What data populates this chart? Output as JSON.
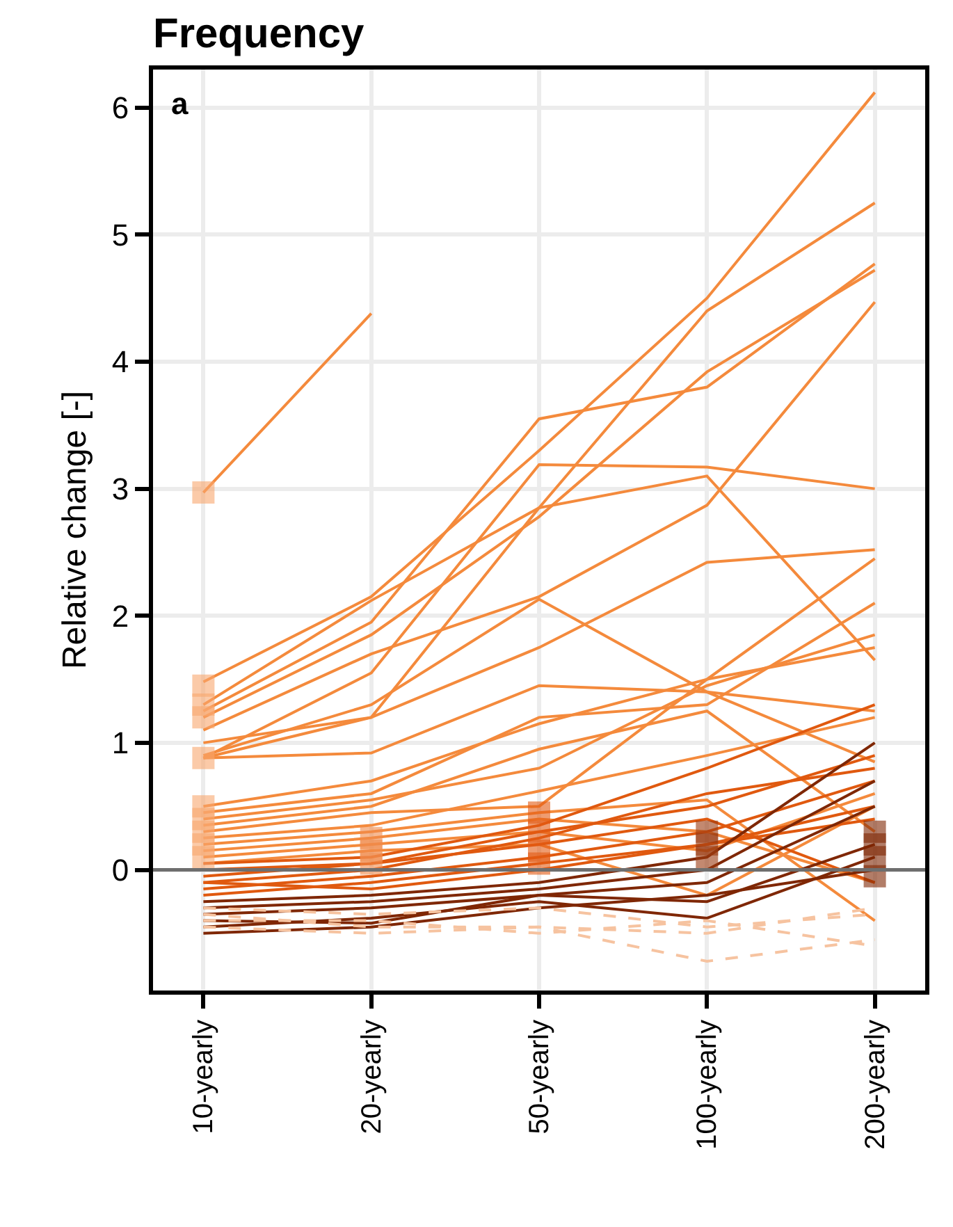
{
  "chart_data": {
    "type": "line",
    "title": "Frequency",
    "ylabel": "Relative change [-]",
    "annotations": [
      "a"
    ],
    "categories": [
      "10-yearly",
      "20-yearly",
      "50-yearly",
      "100-yearly",
      "200-yearly"
    ],
    "ylim": [
      -0.95,
      6.3
    ],
    "yticks": [
      0,
      1,
      2,
      3,
      4,
      5,
      6
    ],
    "grid": true,
    "line_style": "solid",
    "ref_lines": [
      {
        "axis": "y",
        "value": 0,
        "color": "#6e6e6e"
      }
    ],
    "series": [
      {
        "color": "#f48a3c",
        "values": [
          2.97,
          4.38,
          null,
          null,
          null
        ]
      },
      {
        "color": "#f48a3c",
        "values": [
          1.48,
          2.15,
          3.3,
          4.5,
          6.12
        ]
      },
      {
        "color": "#f48a3c",
        "values": [
          1.3,
          2.12,
          2.85,
          4.4,
          5.25
        ]
      },
      {
        "color": "#f48a3c",
        "values": [
          1.25,
          1.95,
          3.55,
          3.8,
          4.77
        ]
      },
      {
        "color": "#f48a3c",
        "values": [
          1.2,
          1.85,
          2.78,
          3.92,
          4.72
        ]
      },
      {
        "color": "#f48a3c",
        "values": [
          1.1,
          1.7,
          2.15,
          2.87,
          4.47
        ]
      },
      {
        "color": "#f48a3c",
        "values": [
          0.88,
          1.55,
          3.19,
          3.17,
          3.0
        ]
      },
      {
        "color": "#f48a3c",
        "values": [
          0.9,
          1.3,
          2.13,
          1.4,
          0.85
        ]
      },
      {
        "color": "#f48a3c",
        "values": [
          1.0,
          1.2,
          2.85,
          3.1,
          1.65
        ]
      },
      {
        "color": "#f48a3c",
        "values": [
          0.88,
          1.2,
          1.75,
          2.42,
          2.52
        ]
      },
      {
        "color": "#f48a3c",
        "values": [
          0.88,
          0.92,
          1.45,
          1.4,
          1.25
        ]
      },
      {
        "color": "#f48a3c",
        "values": [
          0.5,
          0.7,
          1.15,
          1.5,
          2.45
        ]
      },
      {
        "color": "#f48a3c",
        "values": [
          0.45,
          0.6,
          1.2,
          1.3,
          2.1
        ]
      },
      {
        "color": "#f48a3c",
        "values": [
          0.4,
          0.55,
          0.8,
          1.45,
          1.85
        ]
      },
      {
        "color": "#f48a3c",
        "values": [
          0.35,
          0.5,
          0.95,
          1.25,
          0.3
        ]
      },
      {
        "color": "#f48a3c",
        "values": [
          0.3,
          0.45,
          0.5,
          1.5,
          1.75
        ]
      },
      {
        "color": "#f48a3c",
        "values": [
          0.25,
          0.35,
          0.62,
          0.9,
          1.2
        ]
      },
      {
        "color": "#f48a3c",
        "values": [
          0.2,
          0.3,
          0.45,
          0.55,
          -0.4
        ]
      },
      {
        "color": "#f48a3c",
        "values": [
          0.15,
          0.25,
          0.4,
          0.3,
          -0.1
        ]
      },
      {
        "color": "#f48a3c",
        "values": [
          0.1,
          0.2,
          0.3,
          0.15,
          0.6
        ]
      },
      {
        "color": "#f48a3c",
        "values": [
          0.05,
          0.15,
          0.2,
          -0.2,
          0.5
        ]
      },
      {
        "color": "#e0590f",
        "values": [
          0.05,
          0.1,
          0.35,
          0.8,
          1.3
        ]
      },
      {
        "color": "#e0590f",
        "values": [
          -0.05,
          0.05,
          0.3,
          0.5,
          0.9
        ]
      },
      {
        "color": "#e0590f",
        "values": [
          -0.1,
          0.0,
          0.25,
          0.6,
          0.8
        ]
      },
      {
        "color": "#e0590f",
        "values": [
          -0.15,
          -0.05,
          0.1,
          0.3,
          0.7
        ]
      },
      {
        "color": "#e0590f",
        "values": [
          -0.2,
          -0.1,
          0.05,
          0.2,
          0.5
        ]
      },
      {
        "color": "#e0590f",
        "values": [
          0.0,
          0.05,
          0.2,
          0.4,
          -0.1
        ]
      },
      {
        "color": "#e0590f",
        "values": [
          -0.1,
          -0.15,
          0.0,
          0.2,
          0.4
        ]
      },
      {
        "color": "#7f2704",
        "values": [
          -0.25,
          -0.2,
          -0.1,
          0.1,
          1.0
        ]
      },
      {
        "color": "#7f2704",
        "values": [
          -0.3,
          -0.25,
          -0.15,
          0.0,
          0.7
        ]
      },
      {
        "color": "#7f2704",
        "values": [
          -0.35,
          -0.3,
          -0.2,
          -0.1,
          0.5
        ]
      },
      {
        "color": "#7f2704",
        "values": [
          -0.4,
          -0.42,
          -0.2,
          -0.25,
          0.2
        ]
      },
      {
        "color": "#7f2704",
        "values": [
          -0.45,
          -0.38,
          -0.25,
          -0.38,
          0.1
        ]
      },
      {
        "color": "#7f2704",
        "values": [
          -0.5,
          -0.45,
          -0.3,
          -0.2,
          0.0
        ]
      },
      {
        "color": "#f6c3a0",
        "line_style": "dashed",
        "values": [
          -0.35,
          -0.45,
          -0.45,
          -0.5,
          -0.3
        ]
      },
      {
        "color": "#f6c3a0",
        "line_style": "dashed",
        "values": [
          -0.45,
          -0.5,
          -0.45,
          -0.72,
          -0.55
        ]
      },
      {
        "color": "#f6c3a0",
        "line_style": "dashed",
        "values": [
          -0.3,
          -0.35,
          -0.3,
          -0.45,
          -0.35
        ]
      },
      {
        "color": "#f6c3a0",
        "line_style": "dashed",
        "values": [
          -0.4,
          -0.4,
          -0.5,
          -0.4,
          -0.6
        ]
      },
      {
        "type": "scatter",
        "marker": "square",
        "color": "#f9a66e",
        "x": [
          "10-yearly",
          "10-yearly",
          "10-yearly",
          "10-yearly",
          "10-yearly",
          "10-yearly",
          "10-yearly",
          "10-yearly",
          "10-yearly",
          "10-yearly"
        ],
        "values": [
          2.97,
          1.45,
          1.3,
          1.2,
          0.88,
          0.5,
          0.4,
          0.3,
          0.2,
          0.1
        ]
      },
      {
        "type": "scatter",
        "marker": "square",
        "color": "#f08a4b",
        "x": [
          "20-yearly",
          "20-yearly",
          "20-yearly"
        ],
        "values": [
          0.25,
          0.15,
          0.05
        ]
      },
      {
        "type": "scatter",
        "marker": "square",
        "color": "#e35a12",
        "x": [
          "50-yearly",
          "50-yearly",
          "50-yearly",
          "50-yearly"
        ],
        "values": [
          0.45,
          0.3,
          0.15,
          0.05
        ]
      },
      {
        "type": "scatter",
        "marker": "square",
        "color": "#9b3a10",
        "x": [
          "100-yearly",
          "100-yearly",
          "100-yearly"
        ],
        "values": [
          0.3,
          0.2,
          0.1
        ]
      },
      {
        "type": "scatter",
        "marker": "square",
        "color": "#7f2704",
        "x": [
          "200-yearly",
          "200-yearly",
          "200-yearly",
          "200-yearly"
        ],
        "values": [
          0.3,
          0.2,
          0.1,
          -0.05
        ]
      }
    ]
  }
}
